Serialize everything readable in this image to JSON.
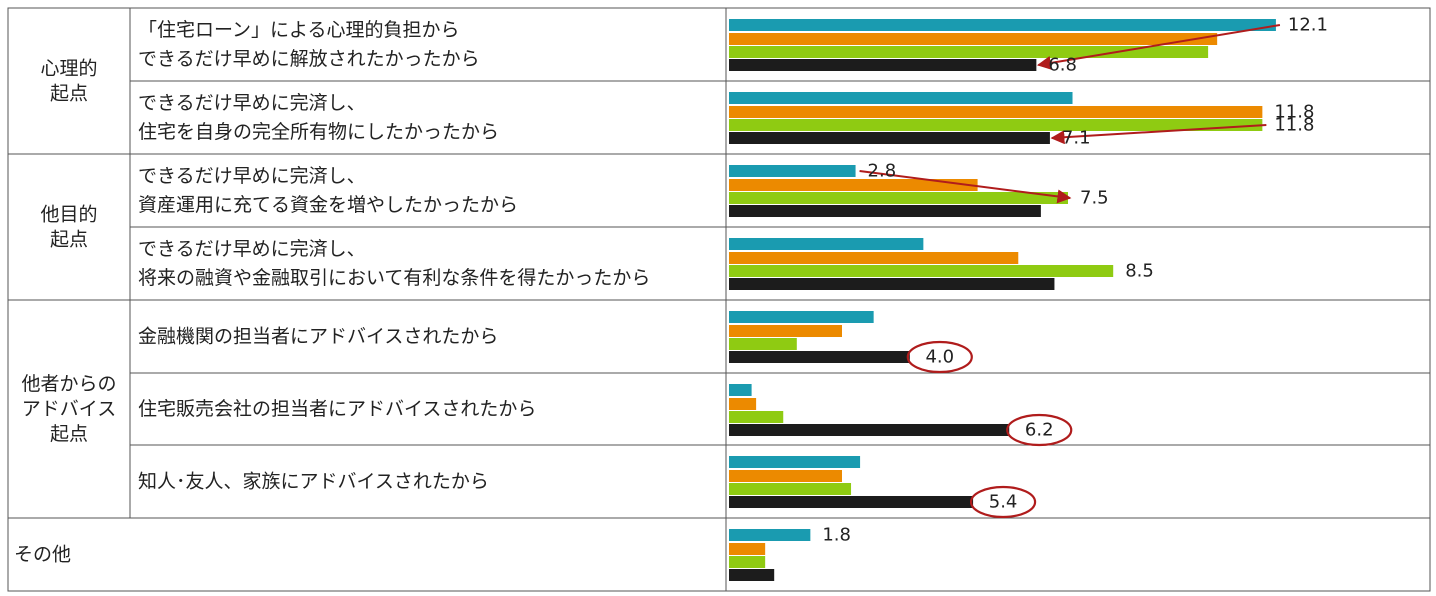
{
  "chart_data": {
    "type": "bar",
    "orientation": "horizontal",
    "colors": [
      "#1a9bb0",
      "#ec8a00",
      "#8fcb12",
      "#1c1c1c"
    ],
    "arrow_color": "#b01c1c",
    "groups": [
      {
        "label": "心理的\n起点",
        "rows": [
          0,
          1
        ]
      },
      {
        "label": "他目的\n起点",
        "rows": [
          2,
          3
        ]
      },
      {
        "label": "他者からの\nアドバイス\n起点",
        "rows": [
          4,
          5,
          6
        ]
      },
      {
        "label": "その他",
        "rows": [
          7
        ],
        "merged": true
      }
    ],
    "categories": [
      "「住宅ローン」による心理的負担から\nできるだけ早めに解放されたかったから",
      "できるだけ早めに完済し、\n住宅を自身の完全所有物にしたかったから",
      "できるだけ早めに完済し、\n資産運用に充てる資金を増やしたかったから",
      "できるだけ早めに完済し、\n将来の融資や金融取引において有利な条件を得たかったから",
      "金融機関の担当者にアドバイスされたから",
      "住宅販売会社の担当者にアドバイスされたから",
      "知人･友人、家族にアドバイスされたから",
      ""
    ],
    "series": [
      {
        "values": [
          12.1,
          7.6,
          2.8,
          4.3,
          3.2,
          0.5,
          2.9,
          1.8
        ]
      },
      {
        "values": [
          10.8,
          11.8,
          5.5,
          6.4,
          2.5,
          0.6,
          2.5,
          0.8
        ]
      },
      {
        "values": [
          10.6,
          11.8,
          7.5,
          8.5,
          1.5,
          1.2,
          2.7,
          0.8
        ]
      },
      {
        "values": [
          6.8,
          7.1,
          6.9,
          7.2,
          4.0,
          6.2,
          5.4,
          1.0
        ]
      }
    ],
    "data_labels": [
      {
        "row": 0,
        "series": 0,
        "text": "12.1"
      },
      {
        "row": 0,
        "series": 3,
        "text": "6.8"
      },
      {
        "row": 1,
        "series": 1,
        "text": "11.8"
      },
      {
        "row": 1,
        "series": 2,
        "text": "11.8"
      },
      {
        "row": 1,
        "series": 3,
        "text": "7.1"
      },
      {
        "row": 2,
        "series": 0,
        "text": "2.8"
      },
      {
        "row": 2,
        "series": 2,
        "text": "7.5"
      },
      {
        "row": 3,
        "series": 2,
        "text": "8.5"
      },
      {
        "row": 4,
        "series": 3,
        "text": "4.0",
        "circled": true
      },
      {
        "row": 5,
        "series": 3,
        "text": "6.2",
        "circled": true
      },
      {
        "row": 6,
        "series": 3,
        "text": "5.4",
        "circled": true
      },
      {
        "row": 7,
        "series": 0,
        "text": "1.8"
      }
    ],
    "arrows": [
      {
        "row": 0,
        "from_series": 0,
        "to_series": 3
      },
      {
        "row": 1,
        "from_series": 2,
        "to_series": 3
      },
      {
        "row": 2,
        "from_series": 0,
        "to_series": 2
      }
    ]
  }
}
